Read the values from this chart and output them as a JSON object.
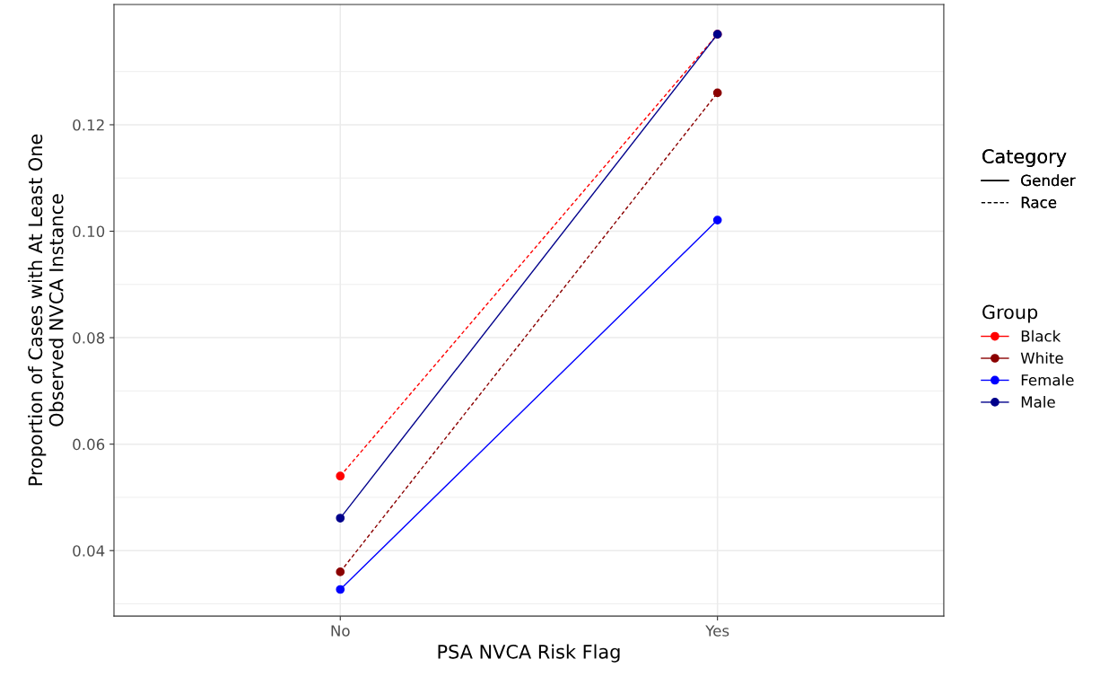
{
  "chart_data": {
    "type": "line",
    "xlabel": "PSA NVCA Risk Flag",
    "ylabel": "Proportion of Cases with At Least One\nObserved NVCA Instance",
    "categories": [
      "No",
      "Yes"
    ],
    "series": [
      {
        "name": "Black",
        "color": "#ff0000",
        "line_style": "dashed",
        "values": [
          0.054,
          0.137
        ]
      },
      {
        "name": "White",
        "color": "#8b0000",
        "line_style": "dashed",
        "values": [
          0.036,
          0.126
        ]
      },
      {
        "name": "Female",
        "color": "#0000ff",
        "line_style": "solid",
        "values": [
          0.0327,
          0.1021
        ]
      },
      {
        "name": "Male",
        "color": "#00008b",
        "line_style": "solid",
        "values": [
          0.0461,
          0.137
        ]
      }
    ],
    "ylim": [
      0.0277,
      0.1426
    ],
    "yticks": [
      {
        "value": 0.04,
        "label": "0.04"
      },
      {
        "value": 0.06,
        "label": "0.06"
      },
      {
        "value": 0.08,
        "label": "0.08"
      },
      {
        "value": 0.1,
        "label": "0.10"
      },
      {
        "value": 0.12,
        "label": "0.12"
      }
    ],
    "grid": true,
    "marker": "circle",
    "legend": "right",
    "legend_title": "Group",
    "annotations": [
      "Category",
      "Gender",
      "Race"
    ]
  }
}
